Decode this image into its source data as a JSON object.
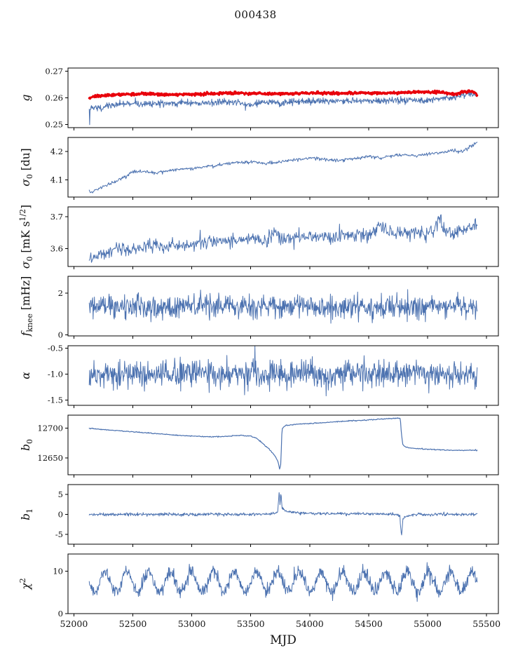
{
  "chart_data": {
    "type": "line",
    "title": "000438",
    "xlabel": "MJD",
    "xlim": [
      51950,
      55600
    ],
    "xticks": [
      52000,
      52500,
      53000,
      53500,
      54000,
      54500,
      55000,
      55500
    ],
    "xtick_labels": [
      "52000",
      "52500",
      "53000",
      "53500",
      "54000",
      "54500",
      "55000",
      "55500"
    ],
    "line_color": "#4c72b0",
    "highlight_color": "#e8000b",
    "panels": [
      {
        "name": "g",
        "ylabel_parts": [
          {
            "t": "g",
            "s": "it"
          }
        ],
        "ylim": [
          0.2488,
          0.2712
        ],
        "ytick_vals": [
          0.25,
          0.26,
          0.27
        ],
        "ytick_labels": [
          "0.25",
          "0.26",
          "0.27"
        ],
        "series": [
          {
            "name": "g-raw",
            "color": "#4c72b0",
            "width": 1,
            "noise": 0.0006,
            "n": 900,
            "anchors": [
              [
                52130,
                0.2563
              ],
              [
                52133,
                0.2497
              ],
              [
                52137,
                0.2558
              ],
              [
                52200,
                0.2563
              ],
              [
                52300,
                0.257
              ],
              [
                52450,
                0.258
              ],
              [
                52550,
                0.2577
              ],
              [
                52650,
                0.2575
              ],
              [
                52800,
                0.258
              ],
              [
                52950,
                0.2583
              ],
              [
                53100,
                0.258
              ],
              [
                53250,
                0.2585
              ],
              [
                53400,
                0.2582
              ],
              [
                53500,
                0.257
              ],
              [
                53600,
                0.2585
              ],
              [
                53750,
                0.258
              ],
              [
                53900,
                0.2585
              ],
              [
                54050,
                0.2588
              ],
              [
                54200,
                0.2585
              ],
              [
                54350,
                0.259
              ],
              [
                54500,
                0.2588
              ],
              [
                54650,
                0.259
              ],
              [
                54800,
                0.2592
              ],
              [
                54950,
                0.2592
              ],
              [
                55100,
                0.2598
              ],
              [
                55250,
                0.2605
              ],
              [
                55350,
                0.2618
              ],
              [
                55420,
                0.2608
              ]
            ]
          },
          {
            "name": "g-smoothed",
            "color": "#e8000b",
            "width": 3,
            "noise": 0.00025,
            "n": 900,
            "anchors": [
              [
                52130,
                0.2598
              ],
              [
                52160,
                0.2605
              ],
              [
                52250,
                0.2608
              ],
              [
                52400,
                0.2612
              ],
              [
                52600,
                0.2615
              ],
              [
                52800,
                0.2612
              ],
              [
                53000,
                0.2614
              ],
              [
                53200,
                0.2616
              ],
              [
                53400,
                0.2618
              ],
              [
                53600,
                0.2615
              ],
              [
                53800,
                0.2616
              ],
              [
                54000,
                0.2618
              ],
              [
                54200,
                0.2617
              ],
              [
                54400,
                0.2618
              ],
              [
                54600,
                0.2618
              ],
              [
                54800,
                0.262
              ],
              [
                55000,
                0.2622
              ],
              [
                55150,
                0.262
              ],
              [
                55230,
                0.2612
              ],
              [
                55300,
                0.2622
              ],
              [
                55380,
                0.2625
              ],
              [
                55420,
                0.2612
              ]
            ]
          }
        ]
      },
      {
        "name": "sigma0-du",
        "ylabel_parts": [
          {
            "t": "σ",
            "s": "it"
          },
          {
            "t": "0",
            "s": "sub"
          },
          {
            "t": " [du]",
            "s": "norm"
          }
        ],
        "ylim": [
          4.04,
          4.25
        ],
        "ytick_vals": [
          4.1,
          4.2
        ],
        "ytick_labels": [
          "4.1",
          "4.2"
        ],
        "series": [
          {
            "name": "sigma0-du-line",
            "color": "#4c72b0",
            "width": 1,
            "noise": 0.003,
            "n": 700,
            "anchors": [
              [
                52130,
                4.062
              ],
              [
                52145,
                4.055
              ],
              [
                52200,
                4.068
              ],
              [
                52300,
                4.085
              ],
              [
                52400,
                4.105
              ],
              [
                52500,
                4.128
              ],
              [
                52600,
                4.13
              ],
              [
                52700,
                4.125
              ],
              [
                52800,
                4.132
              ],
              [
                52900,
                4.138
              ],
              [
                53000,
                4.14
              ],
              [
                53100,
                4.148
              ],
              [
                53200,
                4.15
              ],
              [
                53300,
                4.158
              ],
              [
                53400,
                4.163
              ],
              [
                53500,
                4.165
              ],
              [
                53600,
                4.158
              ],
              [
                53700,
                4.16
              ],
              [
                53800,
                4.168
              ],
              [
                53900,
                4.172
              ],
              [
                54000,
                4.178
              ],
              [
                54100,
                4.175
              ],
              [
                54200,
                4.168
              ],
              [
                54300,
                4.172
              ],
              [
                54400,
                4.178
              ],
              [
                54500,
                4.183
              ],
              [
                54600,
                4.178
              ],
              [
                54700,
                4.185
              ],
              [
                54800,
                4.19
              ],
              [
                54900,
                4.185
              ],
              [
                55000,
                4.192
              ],
              [
                55100,
                4.195
              ],
              [
                55200,
                4.205
              ],
              [
                55300,
                4.2
              ],
              [
                55350,
                4.215
              ],
              [
                55420,
                4.232
              ]
            ]
          }
        ]
      },
      {
        "name": "sigma0-mks",
        "ylabel_parts": [
          {
            "t": "σ",
            "s": "it"
          },
          {
            "t": "0",
            "s": "sub"
          },
          {
            "t": " [mK s",
            "s": "norm"
          },
          {
            "t": "1/2",
            "s": "sup"
          },
          {
            "t": "]",
            "s": "norm"
          }
        ],
        "ylim": [
          3.545,
          3.73
        ],
        "ytick_vals": [
          3.6,
          3.7
        ],
        "ytick_labels": [
          "3.6",
          "3.7"
        ],
        "series": [
          {
            "name": "sigma0-mks-line",
            "color": "#4c72b0",
            "width": 1,
            "noise": 0.011,
            "n": 700,
            "anchors": [
              [
                52130,
                3.575
              ],
              [
                52145,
                3.558
              ],
              [
                52200,
                3.58
              ],
              [
                52350,
                3.595
              ],
              [
                52500,
                3.6
              ],
              [
                52700,
                3.608
              ],
              [
                52900,
                3.612
              ],
              [
                53100,
                3.618
              ],
              [
                53300,
                3.622
              ],
              [
                53500,
                3.628
              ],
              [
                53650,
                3.625
              ],
              [
                53700,
                3.66
              ],
              [
                53750,
                3.63
              ],
              [
                53900,
                3.638
              ],
              [
                54100,
                3.64
              ],
              [
                54300,
                3.638
              ],
              [
                54500,
                3.645
              ],
              [
                54600,
                3.67
              ],
              [
                54700,
                3.648
              ],
              [
                54900,
                3.65
              ],
              [
                55050,
                3.655
              ],
              [
                55100,
                3.69
              ],
              [
                55150,
                3.65
              ],
              [
                55300,
                3.655
              ],
              [
                55420,
                3.675
              ]
            ]
          }
        ]
      },
      {
        "name": "fknee",
        "ylabel_parts": [
          {
            "t": "f",
            "s": "it"
          },
          {
            "t": "knee",
            "s": "sub"
          },
          {
            "t": " [mHz]",
            "s": "norm"
          }
        ],
        "ylim": [
          -0.05,
          2.8
        ],
        "ytick_vals": [
          0,
          2
        ],
        "ytick_labels": [
          "0",
          "2"
        ],
        "series": [
          {
            "name": "fknee-line",
            "color": "#4c72b0",
            "width": 1,
            "noise": 0.26,
            "n": 900,
            "anchors": [
              [
                52130,
                1.33
              ],
              [
                53750,
                1.35
              ],
              [
                55420,
                1.32
              ]
            ]
          }
        ]
      },
      {
        "name": "alpha",
        "ylabel_parts": [
          {
            "t": "α",
            "s": "it"
          }
        ],
        "ylim": [
          -1.6,
          -0.45
        ],
        "ytick_vals": [
          -1.5,
          -1.0,
          -0.5
        ],
        "ytick_labels": [
          "-1.5",
          "-1.0",
          "-0.5"
        ],
        "series": [
          {
            "name": "alpha-line",
            "color": "#4c72b0",
            "width": 1,
            "noise": 0.13,
            "n": 900,
            "anchors": [
              [
                52130,
                -1.0
              ],
              [
                55420,
                -1.0
              ]
            ]
          }
        ]
      },
      {
        "name": "b0",
        "ylabel_parts": [
          {
            "t": "b",
            "s": "it"
          },
          {
            "t": "0",
            "s": "sub"
          }
        ],
        "ylim": [
          12622,
          12722
        ],
        "ytick_vals": [
          12650,
          12700
        ],
        "ytick_labels": [
          "12650",
          "12700"
        ],
        "series": [
          {
            "name": "b0-line",
            "color": "#4c72b0",
            "width": 1.2,
            "noise": 0.4,
            "n": 700,
            "anchors": [
              [
                52130,
                12700
              ],
              [
                52300,
                12697
              ],
              [
                52500,
                12694
              ],
              [
                52700,
                12691
              ],
              [
                52900,
                12688
              ],
              [
                53100,
                12686
              ],
              [
                53250,
                12686
              ],
              [
                53400,
                12688
              ],
              [
                53500,
                12687
              ],
              [
                53550,
                12683
              ],
              [
                53600,
                12675
              ],
              [
                53650,
                12666
              ],
              [
                53700,
                12655
              ],
              [
                53730,
                12645
              ],
              [
                53745,
                12632
              ],
              [
                53755,
                12640
              ],
              [
                53765,
                12700
              ],
              [
                53800,
                12705
              ],
              [
                53900,
                12707
              ],
              [
                54100,
                12709
              ],
              [
                54300,
                12712
              ],
              [
                54500,
                12714
              ],
              [
                54650,
                12716
              ],
              [
                54750,
                12717
              ],
              [
                54768,
                12717
              ],
              [
                54778,
                12690
              ],
              [
                54790,
                12672
              ],
              [
                54820,
                12668
              ],
              [
                54900,
                12666
              ],
              [
                55000,
                12665
              ],
              [
                55100,
                12664
              ],
              [
                55200,
                12663
              ],
              [
                55300,
                12663
              ],
              [
                55420,
                12663
              ]
            ]
          }
        ]
      },
      {
        "name": "b1",
        "ylabel_parts": [
          {
            "t": "b",
            "s": "it"
          },
          {
            "t": "1",
            "s": "sub"
          }
        ],
        "ylim": [
          -7.5,
          7.5
        ],
        "ytick_vals": [
          -5,
          0,
          5
        ],
        "ytick_labels": [
          "-5",
          "0",
          "5"
        ],
        "series": [
          {
            "name": "b1-line",
            "color": "#4c72b0",
            "width": 1,
            "noise": 0.18,
            "n": 900,
            "anchors": [
              [
                52130,
                0
              ],
              [
                53650,
                0
              ],
              [
                53700,
                0.3
              ],
              [
                53730,
                0.8
              ],
              [
                53742,
                6.3
              ],
              [
                53748,
                2.0
              ],
              [
                53756,
                5.5
              ],
              [
                53766,
                1.5
              ],
              [
                53800,
                0.8
              ],
              [
                53900,
                0.4
              ],
              [
                54100,
                0.2
              ],
              [
                54600,
                0.1
              ],
              [
                54740,
                0
              ],
              [
                54765,
                -0.4
              ],
              [
                54778,
                -6.0
              ],
              [
                54790,
                -1.2
              ],
              [
                54830,
                -0.3
              ],
              [
                54900,
                0
              ],
              [
                55420,
                0
              ]
            ]
          }
        ]
      },
      {
        "name": "chi2",
        "ylabel_parts": [
          {
            "t": "χ",
            "s": "it"
          },
          {
            "t": "2",
            "s": "sup"
          }
        ],
        "ylim": [
          0,
          14
        ],
        "ytick_vals": [
          0,
          10
        ],
        "ytick_labels": [
          "0",
          "10"
        ],
        "series": [
          {
            "name": "chi2-line",
            "color": "#4c72b0",
            "width": 1,
            "noise": 0.8,
            "n": 900,
            "osc": {
              "amp": 2.3,
              "period": 183,
              "x0": 52220
            },
            "anchors": [
              [
                52130,
                7.5
              ],
              [
                55420,
                7.5
              ]
            ]
          }
        ]
      }
    ]
  }
}
